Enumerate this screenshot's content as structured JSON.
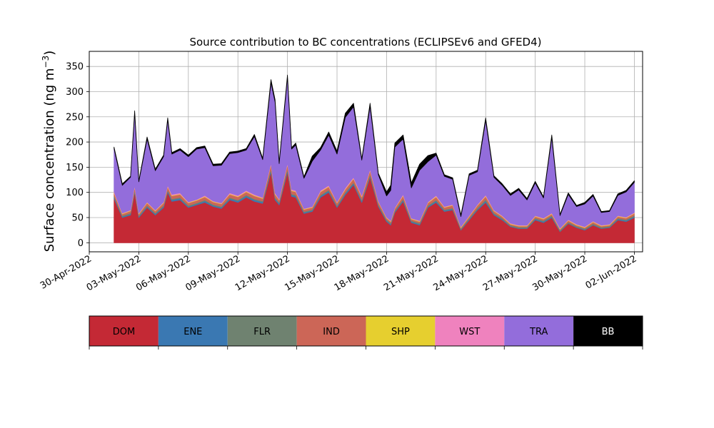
{
  "chart_data": {
    "type": "area",
    "title": "Source contribution to BC concentrations (ECLIPSEv6 and GFED4)",
    "ylabel_main": "Surface concentration (ng m",
    "ylabel_exp": "−3",
    "ylabel_close": ")",
    "xlabel": "",
    "stacked": true,
    "grid": true,
    "ylim": [
      -18,
      380
    ],
    "xlim": [
      "2022-04-30T00:00",
      "2022-06-02T12:00"
    ],
    "yticks": [
      0,
      50,
      100,
      150,
      200,
      250,
      300,
      350
    ],
    "xticks": [
      "30-Apr-2022",
      "03-May-2022",
      "06-May-2022",
      "09-May-2022",
      "12-May-2022",
      "15-May-2022",
      "18-May-2022",
      "21-May-2022",
      "24-May-2022",
      "27-May-2022",
      "30-May-2022",
      "02-Jun-2022"
    ],
    "x": [
      "2022-05-01T12:00",
      "2022-05-02T00:00",
      "2022-05-02T12:00",
      "2022-05-02T18:00",
      "2022-05-03T00:00",
      "2022-05-03T12:00",
      "2022-05-04T00:00",
      "2022-05-04T12:00",
      "2022-05-04T18:00",
      "2022-05-05T00:00",
      "2022-05-05T12:00",
      "2022-05-06T00:00",
      "2022-05-06T12:00",
      "2022-05-07T00:00",
      "2022-05-07T12:00",
      "2022-05-08T00:00",
      "2022-05-08T12:00",
      "2022-05-09T00:00",
      "2022-05-09T12:00",
      "2022-05-10T00:00",
      "2022-05-10T12:00",
      "2022-05-11T00:00",
      "2022-05-11T06:00",
      "2022-05-11T12:00",
      "2022-05-12T00:00",
      "2022-05-12T06:00",
      "2022-05-12T12:00",
      "2022-05-13T00:00",
      "2022-05-13T12:00",
      "2022-05-14T00:00",
      "2022-05-14T12:00",
      "2022-05-15T00:00",
      "2022-05-15T12:00",
      "2022-05-16T00:00",
      "2022-05-16T12:00",
      "2022-05-17T00:00",
      "2022-05-17T12:00",
      "2022-05-18T00:00",
      "2022-05-18T06:00",
      "2022-05-18T12:00",
      "2022-05-19T00:00",
      "2022-05-19T12:00",
      "2022-05-20T00:00",
      "2022-05-20T12:00",
      "2022-05-21T00:00",
      "2022-05-21T12:00",
      "2022-05-22T00:00",
      "2022-05-22T12:00",
      "2022-05-23T00:00",
      "2022-05-23T12:00",
      "2022-05-24T00:00",
      "2022-05-24T12:00",
      "2022-05-25T00:00",
      "2022-05-25T12:00",
      "2022-05-26T00:00",
      "2022-05-26T12:00",
      "2022-05-27T00:00",
      "2022-05-27T12:00",
      "2022-05-28T00:00",
      "2022-05-28T12:00",
      "2022-05-29T00:00",
      "2022-05-29T12:00",
      "2022-05-30T00:00",
      "2022-05-30T12:00",
      "2022-05-31T00:00",
      "2022-05-31T12:00",
      "2022-06-01T00:00",
      "2022-06-01T12:00",
      "2022-06-02T00:00"
    ],
    "series": [
      {
        "name": "DOM",
        "color": "#c42935",
        "values": [
          88,
          50,
          55,
          100,
          50,
          70,
          55,
          70,
          100,
          82,
          85,
          70,
          75,
          80,
          72,
          68,
          85,
          80,
          90,
          82,
          78,
          140,
          85,
          75,
          140,
          92,
          90,
          58,
          62,
          90,
          100,
          70,
          95,
          115,
          80,
          130,
          72,
          42,
          35,
          60,
          82,
          40,
          35,
          70,
          80,
          62,
          65,
          25,
          45,
          65,
          80,
          55,
          45,
          32,
          28,
          28,
          45,
          40,
          50,
          22,
          38,
          30,
          25,
          35,
          28,
          30,
          45,
          42,
          50
        ]
      },
      {
        "name": "ENE",
        "color": "#3a78b2",
        "values": [
          3,
          2,
          2,
          3,
          2,
          2,
          2,
          2,
          3,
          3,
          3,
          2,
          2,
          3,
          2,
          2,
          3,
          3,
          3,
          3,
          3,
          4,
          3,
          3,
          4,
          3,
          3,
          2,
          2,
          3,
          3,
          2,
          3,
          3,
          3,
          3,
          2,
          2,
          2,
          2,
          3,
          2,
          2,
          2,
          3,
          2,
          2,
          1,
          2,
          2,
          3,
          2,
          2,
          1,
          1,
          1,
          2,
          2,
          2,
          1,
          1,
          1,
          1,
          1,
          1,
          1,
          2,
          2,
          2
        ]
      },
      {
        "name": "FLR",
        "color": "#6f8270",
        "values": [
          2,
          2,
          2,
          2,
          2,
          2,
          2,
          2,
          2,
          2,
          2,
          2,
          2,
          2,
          2,
          2,
          2,
          2,
          2,
          2,
          2,
          3,
          2,
          2,
          3,
          2,
          2,
          2,
          2,
          2,
          2,
          2,
          2,
          2,
          2,
          3,
          2,
          2,
          2,
          2,
          2,
          2,
          2,
          2,
          2,
          2,
          2,
          2,
          2,
          2,
          3,
          2,
          2,
          2,
          2,
          2,
          2,
          2,
          2,
          2,
          2,
          2,
          2,
          2,
          2,
          2,
          2,
          2,
          2
        ]
      },
      {
        "name": "IND",
        "color": "#cc6657",
        "values": [
          6,
          3,
          4,
          6,
          3,
          5,
          4,
          5,
          6,
          6,
          6,
          5,
          5,
          6,
          5,
          5,
          6,
          6,
          6,
          6,
          5,
          8,
          6,
          5,
          8,
          6,
          6,
          4,
          4,
          6,
          6,
          5,
          6,
          7,
          6,
          7,
          5,
          3,
          3,
          4,
          6,
          3,
          3,
          5,
          6,
          4,
          5,
          2,
          3,
          5,
          6,
          4,
          3,
          2,
          2,
          2,
          3,
          3,
          3,
          2,
          3,
          2,
          2,
          3,
          2,
          2,
          3,
          3,
          4
        ]
      },
      {
        "name": "SHP",
        "color": "#e6cf2f",
        "values": [
          1,
          1,
          1,
          1,
          1,
          1,
          1,
          1,
          1,
          1,
          1,
          1,
          1,
          1,
          1,
          1,
          1,
          1,
          1,
          1,
          1,
          1,
          1,
          1,
          1,
          1,
          1,
          1,
          1,
          1,
          1,
          1,
          1,
          1,
          1,
          1,
          1,
          1,
          1,
          1,
          1,
          1,
          1,
          1,
          1,
          1,
          1,
          1,
          1,
          1,
          1,
          1,
          1,
          1,
          1,
          1,
          1,
          1,
          1,
          1,
          1,
          1,
          1,
          1,
          1,
          1,
          1,
          1,
          1
        ]
      },
      {
        "name": "WST",
        "color": "#ef82be",
        "values": [
          2,
          1,
          1,
          2,
          1,
          1,
          1,
          1,
          2,
          2,
          2,
          1,
          1,
          2,
          1,
          1,
          2,
          2,
          2,
          2,
          1,
          2,
          2,
          1,
          2,
          2,
          2,
          1,
          1,
          2,
          2,
          1,
          2,
          2,
          2,
          2,
          1,
          1,
          1,
          1,
          2,
          1,
          1,
          1,
          2,
          1,
          1,
          1,
          1,
          1,
          2,
          1,
          1,
          1,
          1,
          1,
          1,
          1,
          1,
          1,
          1,
          1,
          1,
          1,
          1,
          1,
          1,
          1,
          1
        ]
      },
      {
        "name": "TRA",
        "color": "#936ddb",
        "values": [
          85,
          55,
          65,
          143,
          62,
          125,
          78,
          90,
          130,
          80,
          85,
          90,
          100,
          95,
          70,
          75,
          78,
          85,
          80,
          115,
          75,
          160,
          180,
          70,
          170,
          80,
          90,
          60,
          90,
          80,
          100,
          95,
          140,
          140,
          70,
          125,
          52,
          42,
          60,
          120,
          110,
          60,
          100,
          80,
          80,
          60,
          50,
          20,
          80,
          65,
          148,
          65,
          60,
          55,
          70,
          50,
          65,
          40,
          150,
          25,
          50,
          35,
          45,
          50,
          25,
          25,
          40,
          50,
          60
        ]
      },
      {
        "name": "BB",
        "color": "#000000",
        "values": [
          3,
          3,
          2,
          5,
          2,
          4,
          3,
          3,
          4,
          3,
          3,
          3,
          3,
          3,
          3,
          3,
          3,
          3,
          3,
          4,
          3,
          6,
          5,
          3,
          5,
          3,
          4,
          3,
          10,
          5,
          6,
          6,
          8,
          7,
          3,
          6,
          3,
          8,
          10,
          8,
          8,
          10,
          12,
          12,
          4,
          3,
          3,
          3,
          3,
          3,
          5,
          3,
          3,
          3,
          3,
          3,
          3,
          2,
          5,
          2,
          3,
          2,
          3,
          3,
          2,
          2,
          3,
          3,
          3
        ]
      }
    ]
  },
  "legend": {
    "items": [
      {
        "label": "DOM",
        "color": "#c42935"
      },
      {
        "label": "ENE",
        "color": "#3a78b2"
      },
      {
        "label": "FLR",
        "color": "#6f8270"
      },
      {
        "label": "IND",
        "color": "#cc6657"
      },
      {
        "label": "SHP",
        "color": "#e6cf2f"
      },
      {
        "label": "WST",
        "color": "#ef82be"
      },
      {
        "label": "TRA",
        "color": "#936ddb"
      },
      {
        "label": "BB",
        "color": "#000000"
      }
    ]
  }
}
